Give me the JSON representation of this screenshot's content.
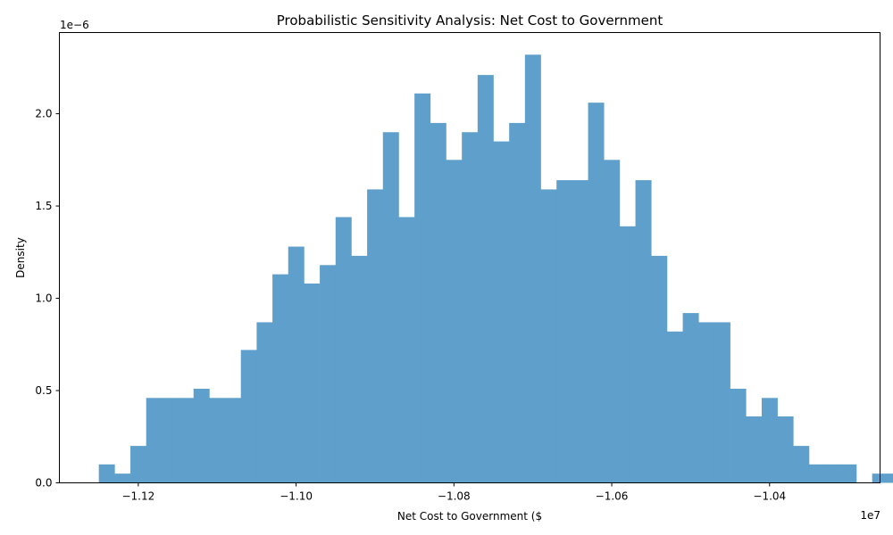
{
  "chart_data": {
    "type": "histogram",
    "title": "Probabilistic Sensitivity Analysis: Net Cost to Government",
    "xlabel": "Net Cost to Government ($",
    "ylabel": "Density",
    "x_offset_label": "1e7",
    "y_offset_label": "1e−6",
    "color": "#5f9fcb",
    "grid": false,
    "xlim": [
      -11.3,
      -10.26
    ],
    "ylim": [
      0,
      2.44
    ],
    "x_ticks": [
      -11.2,
      -11.0,
      -10.8,
      -10.6,
      -10.4
    ],
    "x_tick_labels": [
      "−1.12",
      "−1.10",
      "−1.08",
      "−1.06",
      "−1.04"
    ],
    "y_ticks": [
      0,
      0.5,
      1.0,
      1.5,
      2.0
    ],
    "y_tick_labels": [
      "0.0",
      "0.5",
      "1.0",
      "1.5",
      "2.0"
    ],
    "bin_start": -11.25,
    "bin_width": 0.02,
    "densities": [
      0.1,
      0.05,
      0.2,
      0.46,
      0.46,
      0.46,
      0.51,
      0.46,
      0.46,
      0.72,
      0.87,
      1.13,
      1.28,
      1.08,
      1.18,
      1.44,
      1.23,
      1.59,
      1.9,
      1.44,
      2.11,
      1.95,
      1.75,
      1.9,
      2.21,
      1.85,
      1.95,
      2.32,
      1.59,
      1.64,
      1.64,
      2.06,
      1.75,
      1.39,
      1.64,
      1.23,
      0.82,
      0.92,
      0.87,
      0.87,
      0.51,
      0.36,
      0.46,
      0.36,
      0.2,
      0.1,
      0.1,
      0.1,
      0.0,
      0.05,
      0.05
    ]
  }
}
